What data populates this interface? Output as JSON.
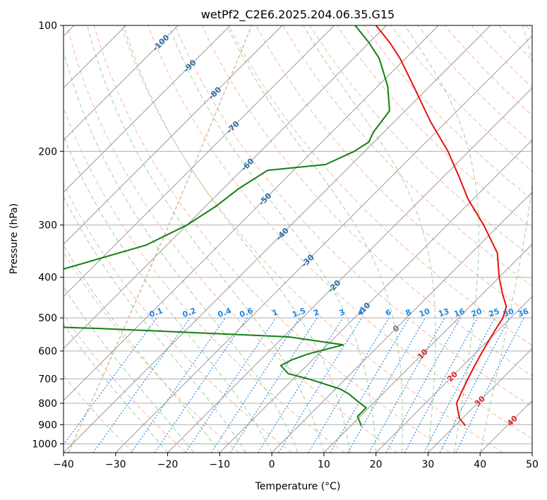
{
  "chart_data": {
    "type": "line",
    "diagram": "skew-t",
    "title": "wetPf2_C2E6.2025.204.06.35.G15",
    "xlabel": "Temperature (°C)",
    "ylabel": "Pressure (hPa)",
    "xlim": [
      -40,
      50
    ],
    "ylim": [
      1050,
      100
    ],
    "y_scale": "log",
    "x_ticks": [
      -40,
      -30,
      -20,
      -10,
      0,
      10,
      20,
      30,
      40,
      50
    ],
    "y_ticks": [
      100,
      200,
      300,
      400,
      500,
      600,
      700,
      800,
      900,
      1000
    ],
    "grid": true,
    "colors": {
      "temperature": "#e8120b",
      "dewpoint": "#128012",
      "isotherm": "#9a9a9a",
      "dry_adiabat": "#f4a58c",
      "moist_adiabat": "#8fc88f",
      "mixing_ratio": "#2b8ce6",
      "label_blue": "#2a6ea6",
      "label_mix": "#1e88e5",
      "label_red": "#d62728"
    },
    "series": [
      {
        "name": "temperature",
        "pressure": [
          905,
          870,
          840,
          800,
          760,
          700,
          660,
          620,
          580,
          540,
          500,
          470,
          440,
          400,
          350,
          300,
          260,
          230,
          200,
          170,
          140,
          120,
          110,
          100
        ],
        "temperature": [
          32,
          29.5,
          28,
          26,
          25,
          23.5,
          22.5,
          21.5,
          20.5,
          19.5,
          18.5,
          17,
          14,
          10,
          5,
          -3,
          -11,
          -17,
          -24,
          -33,
          -43,
          -51,
          -56,
          -62
        ]
      },
      {
        "name": "dewpoint",
        "pressure": [
          905,
          860,
          820,
          790,
          760,
          740,
          700,
          680,
          650,
          630,
          610,
          580,
          555,
          530,
          510,
          335,
          300,
          270,
          245,
          222,
          215,
          200,
          190,
          180,
          160,
          140,
          120,
          110,
          100
        ],
        "temperature": [
          12,
          9.5,
          9.5,
          6.5,
          3.5,
          1,
          -7,
          -12,
          -15,
          -14,
          -12,
          -7,
          -19,
          -57,
          -100,
          -64,
          -60,
          -58,
          -57,
          -55,
          -45,
          -42,
          -41,
          -42,
          -43,
          -48,
          -55,
          -60,
          -66
        ]
      }
    ],
    "isotherm_labels": [
      "-100",
      "-90",
      "-80",
      "-70",
      "-60",
      "-50",
      "-40",
      "-30",
      "-20",
      "-10",
      "0",
      "10",
      "20",
      "30",
      "40"
    ],
    "mixing_ratio_labels": [
      "0.1",
      "0.2",
      "0.4",
      "0.6",
      "1",
      "1.5",
      "2",
      "3",
      "4",
      "6",
      "8",
      "10",
      "13",
      "16",
      "20",
      "25",
      "30",
      "36"
    ],
    "mixing_ratio_values": [
      0.1,
      0.2,
      0.4,
      0.6,
      1,
      1.5,
      2,
      3,
      4,
      6,
      8,
      10,
      13,
      16,
      20,
      25,
      30,
      36
    ],
    "mixing_ratio_label_pressure": 500
  }
}
